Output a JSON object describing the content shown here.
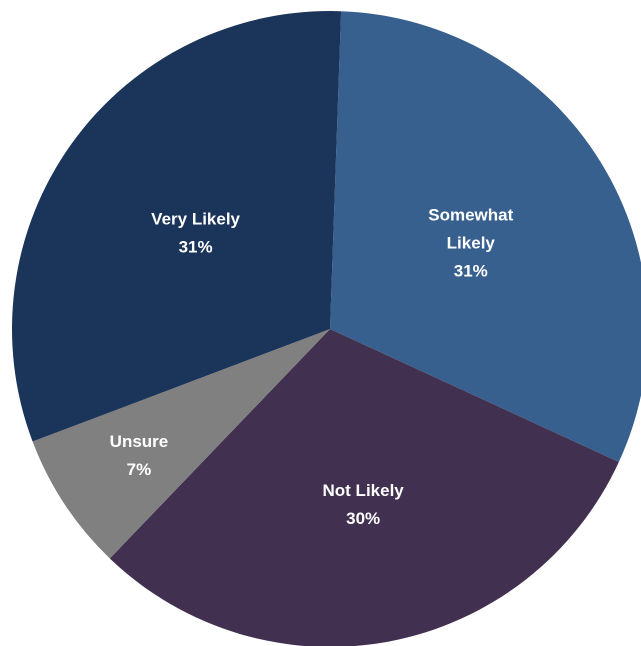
{
  "chart_data": {
    "type": "pie",
    "categories": [
      "Somewhat Likely",
      "Not Likely",
      "Unsure",
      "Very Likely"
    ],
    "values": [
      31,
      30,
      7,
      31
    ],
    "value_labels": [
      "31%",
      "30%",
      "7%",
      "31%"
    ],
    "label_lines": [
      [
        "Somewhat",
        "Likely"
      ],
      [
        "Not Likely"
      ],
      [
        "Unsure"
      ],
      [
        "Very Likely"
      ]
    ],
    "colors": [
      "#37608f",
      "#41304f",
      "#808080",
      "#1b3459"
    ],
    "start_angle_deg": 2,
    "direction": "clockwise",
    "legend": "none",
    "title": ""
  }
}
